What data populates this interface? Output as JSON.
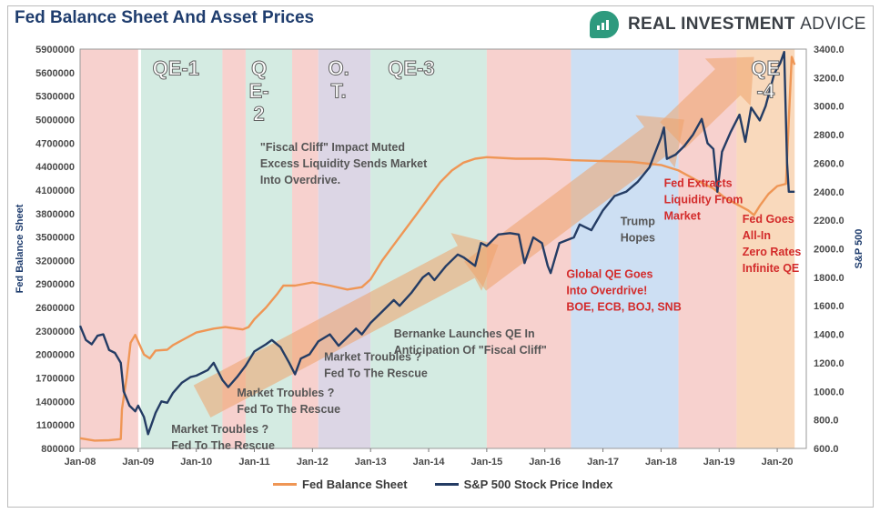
{
  "title": "Fed Balance Sheet And Asset Prices",
  "brand": {
    "name_bold": "REAL INVESTMENT",
    "name_light": "ADVICE",
    "icon": "bar-chart-icon"
  },
  "colors": {
    "fed": "#ef9655",
    "spx": "#243c64",
    "red_band": "#f6c9c6",
    "green_band": "#cde7dd",
    "purple_band": "#d6cfe0",
    "blue_band": "#c4d9f1",
    "orange_band": "#f8d2b0",
    "arrow": "#efa26a",
    "red_text": "#d32b2b",
    "gray_text": "#555555",
    "title": "#1f3d6e"
  },
  "chart_data": {
    "type": "line",
    "title": "Fed Balance Sheet And Asset Prices",
    "ylabel_left": "Fed Balance Sheet",
    "ylabel_right": "S&P 500",
    "x_range": [
      2008.0,
      2020.5
    ],
    "x_ticks": [
      {
        "v": 2008.0,
        "label": "Jan-08"
      },
      {
        "v": 2009.0,
        "label": "Jan-09"
      },
      {
        "v": 2010.0,
        "label": "Jan-10"
      },
      {
        "v": 2011.0,
        "label": "Jan-11"
      },
      {
        "v": 2012.0,
        "label": "Jan-12"
      },
      {
        "v": 2013.0,
        "label": "Jan-13"
      },
      {
        "v": 2014.0,
        "label": "Jan-14"
      },
      {
        "v": 2015.0,
        "label": "Jan-15"
      },
      {
        "v": 2016.0,
        "label": "Jan-16"
      },
      {
        "v": 2017.0,
        "label": "Jan-17"
      },
      {
        "v": 2018.0,
        "label": "Jan-18"
      },
      {
        "v": 2019.0,
        "label": "Jan-19"
      },
      {
        "v": 2020.0,
        "label": "Jan-20"
      }
    ],
    "ylim_left": [
      800000,
      5900000
    ],
    "yticks_left": [
      "800000",
      "1100000",
      "1400000",
      "1700000",
      "2000000",
      "2300000",
      "2600000",
      "2900000",
      "3200000",
      "3500000",
      "3800000",
      "4100000",
      "4400000",
      "4700000",
      "5000000",
      "5300000",
      "5600000",
      "5900000"
    ],
    "ylim_right": [
      600,
      3400
    ],
    "yticks_right": [
      "600.0",
      "800.0",
      "1000.0",
      "1200.0",
      "1400.0",
      "1600.0",
      "1800.0",
      "2000.0",
      "2200.0",
      "2400.0",
      "2600.0",
      "2800.0",
      "3000.0",
      "3200.0",
      "3400.0"
    ],
    "series": [
      {
        "name": "Fed Balance Sheet",
        "axis": "left",
        "points": [
          [
            2008.0,
            930000
          ],
          [
            2008.25,
            900000
          ],
          [
            2008.5,
            905000
          ],
          [
            2008.7,
            920000
          ],
          [
            2008.72,
            1300000
          ],
          [
            2008.8,
            1700000
          ],
          [
            2008.87,
            2150000
          ],
          [
            2008.95,
            2250000
          ],
          [
            2009.1,
            2000000
          ],
          [
            2009.2,
            1950000
          ],
          [
            2009.3,
            2050000
          ],
          [
            2009.5,
            2060000
          ],
          [
            2009.6,
            2120000
          ],
          [
            2009.8,
            2200000
          ],
          [
            2010.0,
            2280000
          ],
          [
            2010.3,
            2330000
          ],
          [
            2010.5,
            2350000
          ],
          [
            2010.8,
            2320000
          ],
          [
            2010.9,
            2350000
          ],
          [
            2011.0,
            2450000
          ],
          [
            2011.2,
            2600000
          ],
          [
            2011.4,
            2780000
          ],
          [
            2011.5,
            2880000
          ],
          [
            2011.7,
            2880000
          ],
          [
            2012.0,
            2920000
          ],
          [
            2012.3,
            2880000
          ],
          [
            2012.6,
            2830000
          ],
          [
            2012.85,
            2860000
          ],
          [
            2013.0,
            2960000
          ],
          [
            2013.2,
            3200000
          ],
          [
            2013.4,
            3400000
          ],
          [
            2013.6,
            3600000
          ],
          [
            2013.8,
            3800000
          ],
          [
            2014.0,
            4000000
          ],
          [
            2014.2,
            4200000
          ],
          [
            2014.4,
            4350000
          ],
          [
            2014.6,
            4450000
          ],
          [
            2014.8,
            4500000
          ],
          [
            2015.0,
            4520000
          ],
          [
            2015.5,
            4500000
          ],
          [
            2016.0,
            4500000
          ],
          [
            2016.5,
            4480000
          ],
          [
            2017.0,
            4470000
          ],
          [
            2017.5,
            4460000
          ],
          [
            2018.0,
            4420000
          ],
          [
            2018.3,
            4350000
          ],
          [
            2018.6,
            4230000
          ],
          [
            2018.9,
            4120000
          ],
          [
            2019.1,
            4000000
          ],
          [
            2019.3,
            3920000
          ],
          [
            2019.5,
            3840000
          ],
          [
            2019.6,
            3780000
          ],
          [
            2019.7,
            3900000
          ],
          [
            2019.85,
            4050000
          ],
          [
            2020.0,
            4150000
          ],
          [
            2020.15,
            4180000
          ],
          [
            2020.2,
            5000000
          ],
          [
            2020.25,
            5800000
          ],
          [
            2020.3,
            5700000
          ]
        ]
      },
      {
        "name": "S&P 500 Stock Price Index",
        "axis": "right",
        "points": [
          [
            2008.0,
            1460
          ],
          [
            2008.1,
            1360
          ],
          [
            2008.2,
            1330
          ],
          [
            2008.3,
            1390
          ],
          [
            2008.4,
            1400
          ],
          [
            2008.5,
            1290
          ],
          [
            2008.6,
            1270
          ],
          [
            2008.7,
            1200
          ],
          [
            2008.75,
            1000
          ],
          [
            2008.85,
            900
          ],
          [
            2008.95,
            860
          ],
          [
            2009.0,
            900
          ],
          [
            2009.1,
            820
          ],
          [
            2009.17,
            700
          ],
          [
            2009.3,
            850
          ],
          [
            2009.4,
            930
          ],
          [
            2009.5,
            920
          ],
          [
            2009.6,
            990
          ],
          [
            2009.75,
            1060
          ],
          [
            2009.9,
            1100
          ],
          [
            2010.0,
            1110
          ],
          [
            2010.2,
            1150
          ],
          [
            2010.3,
            1200
          ],
          [
            2010.45,
            1080
          ],
          [
            2010.55,
            1030
          ],
          [
            2010.7,
            1100
          ],
          [
            2010.85,
            1180
          ],
          [
            2011.0,
            1280
          ],
          [
            2011.2,
            1330
          ],
          [
            2011.3,
            1360
          ],
          [
            2011.45,
            1310
          ],
          [
            2011.6,
            1200
          ],
          [
            2011.7,
            1120
          ],
          [
            2011.8,
            1230
          ],
          [
            2011.95,
            1260
          ],
          [
            2012.1,
            1350
          ],
          [
            2012.3,
            1400
          ],
          [
            2012.45,
            1320
          ],
          [
            2012.6,
            1380
          ],
          [
            2012.75,
            1440
          ],
          [
            2012.85,
            1400
          ],
          [
            2013.0,
            1480
          ],
          [
            2013.2,
            1560
          ],
          [
            2013.4,
            1640
          ],
          [
            2013.5,
            1600
          ],
          [
            2013.7,
            1690
          ],
          [
            2013.9,
            1800
          ],
          [
            2014.0,
            1830
          ],
          [
            2014.1,
            1780
          ],
          [
            2014.3,
            1880
          ],
          [
            2014.5,
            1960
          ],
          [
            2014.6,
            1940
          ],
          [
            2014.8,
            1880
          ],
          [
            2014.9,
            2040
          ],
          [
            2015.0,
            2020
          ],
          [
            2015.2,
            2100
          ],
          [
            2015.4,
            2110
          ],
          [
            2015.55,
            2100
          ],
          [
            2015.65,
            1900
          ],
          [
            2015.8,
            2080
          ],
          [
            2015.95,
            2040
          ],
          [
            2016.05,
            1880
          ],
          [
            2016.1,
            1830
          ],
          [
            2016.25,
            2040
          ],
          [
            2016.5,
            2080
          ],
          [
            2016.6,
            2170
          ],
          [
            2016.8,
            2130
          ],
          [
            2016.9,
            2200
          ],
          [
            2017.0,
            2270
          ],
          [
            2017.2,
            2370
          ],
          [
            2017.4,
            2400
          ],
          [
            2017.6,
            2470
          ],
          [
            2017.8,
            2570
          ],
          [
            2018.0,
            2780
          ],
          [
            2018.05,
            2850
          ],
          [
            2018.1,
            2630
          ],
          [
            2018.25,
            2660
          ],
          [
            2018.4,
            2720
          ],
          [
            2018.55,
            2800
          ],
          [
            2018.7,
            2910
          ],
          [
            2018.8,
            2740
          ],
          [
            2018.9,
            2700
          ],
          [
            2018.97,
            2400
          ],
          [
            2019.05,
            2680
          ],
          [
            2019.2,
            2820
          ],
          [
            2019.35,
            2940
          ],
          [
            2019.45,
            2750
          ],
          [
            2019.55,
            2990
          ],
          [
            2019.7,
            2900
          ],
          [
            2019.8,
            3000
          ],
          [
            2019.95,
            3230
          ],
          [
            2020.05,
            3300
          ],
          [
            2020.12,
            3380
          ],
          [
            2020.17,
            2600
          ],
          [
            2020.2,
            2400
          ],
          [
            2020.3,
            2400
          ]
        ]
      }
    ],
    "bands": [
      {
        "x0": 2008.0,
        "x1": 2009.0,
        "color": "red_band"
      },
      {
        "x0": 2009.05,
        "x1": 2010.45,
        "color": "green_band"
      },
      {
        "x0": 2010.45,
        "x1": 2010.85,
        "color": "red_band"
      },
      {
        "x0": 2010.85,
        "x1": 2011.65,
        "color": "green_band"
      },
      {
        "x0": 2011.65,
        "x1": 2012.1,
        "color": "red_band"
      },
      {
        "x0": 2012.1,
        "x1": 2013.0,
        "color": "purple_band"
      },
      {
        "x0": 2013.0,
        "x1": 2015.0,
        "color": "green_band"
      },
      {
        "x0": 2015.0,
        "x1": 2016.45,
        "color": "red_band"
      },
      {
        "x0": 2016.45,
        "x1": 2018.3,
        "color": "blue_band"
      },
      {
        "x0": 2018.3,
        "x1": 2019.3,
        "color": "red_band"
      },
      {
        "x0": 2019.3,
        "x1": 2020.3,
        "color": "orange_band"
      }
    ],
    "arrows": [
      {
        "x0": 2010.1,
        "y0": 1400000,
        "x1": 2015.2,
        "y1": 3400000
      },
      {
        "x0": 2014.8,
        "y0": 3000000,
        "x1": 2018.4,
        "y1": 5000000
      },
      {
        "x0": 2018.2,
        "y0": 4800000,
        "x1": 2019.6,
        "y1": 5800000
      }
    ],
    "program_labels": [
      {
        "lines": [
          "QE-1"
        ],
        "x": 2009.65,
        "y": 5570000
      },
      {
        "lines": [
          "Q",
          "E-",
          "2"
        ],
        "x": 2011.08,
        "y": 5570000
      },
      {
        "lines": [
          "O.",
          "T."
        ],
        "x": 2012.45,
        "y": 5570000
      },
      {
        "lines": [
          "QE-3"
        ],
        "x": 2013.7,
        "y": 5570000
      },
      {
        "lines": [
          "QE",
          "-4"
        ],
        "x": 2019.8,
        "y": 5570000
      }
    ],
    "annotations": [
      {
        "lines": [
          "\"Fiscal Cliff\" Impact Muted",
          "Excess Liquidity Sends Market",
          "Into Overdrive."
        ],
        "x": 2011.1,
        "y": 4600000,
        "tone": "gray"
      },
      {
        "lines": [
          "Bernanke Launches QE In",
          "Anticipation Of \"Fiscal Cliff\""
        ],
        "x": 2013.4,
        "y": 2220000,
        "tone": "gray"
      },
      {
        "lines": [
          "Market Troubles ?",
          "Fed To The Rescue"
        ],
        "x": 2012.2,
        "y": 1920000,
        "tone": "gray"
      },
      {
        "lines": [
          "Market Troubles ?",
          "Fed To The Rescue"
        ],
        "x": 2010.7,
        "y": 1460000,
        "tone": "gray"
      },
      {
        "lines": [
          "Market Troubles ?",
          "Fed To The Rescue"
        ],
        "x": 2009.57,
        "y": 1000000,
        "tone": "gray"
      },
      {
        "lines": [
          "Trump",
          "Hopes"
        ],
        "x": 2017.3,
        "y": 3650000,
        "tone": "gray"
      },
      {
        "lines": [
          "Global QE Goes",
          "Into Overdrive!",
          "BOE, ECB, BOJ, SNB"
        ],
        "x": 2016.37,
        "y": 2980000,
        "tone": "red"
      },
      {
        "lines": [
          "Fed Extracts",
          "Liquidity From",
          "Market"
        ],
        "x": 2018.05,
        "y": 4140000,
        "tone": "red"
      },
      {
        "lines": [
          "Fed Goes",
          "All-In",
          "Zero Rates",
          "Infinite QE"
        ],
        "x": 2019.4,
        "y": 3680000,
        "tone": "red"
      }
    ],
    "legend_placement": "bottom"
  }
}
